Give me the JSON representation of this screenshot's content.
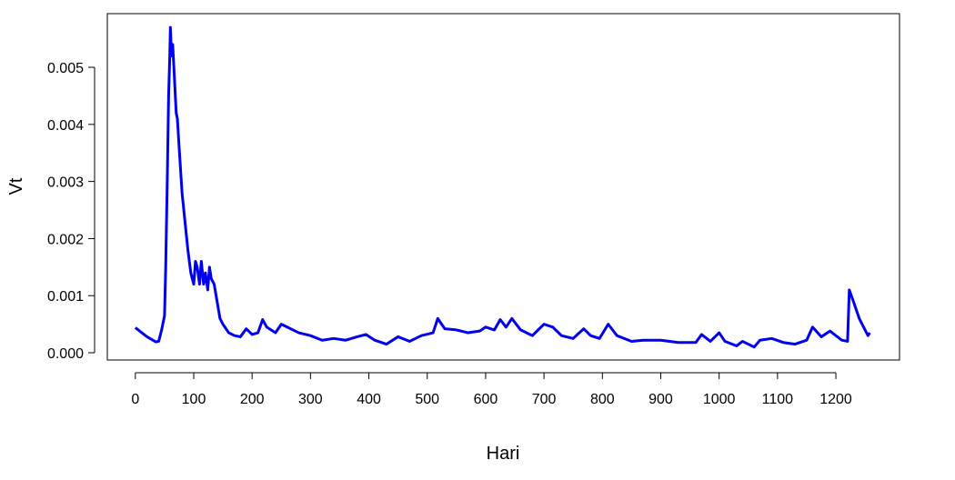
{
  "chart_data": {
    "type": "line",
    "xlabel": "Hari",
    "ylabel": "Vt",
    "x": [
      0,
      10,
      20,
      30,
      35,
      40,
      45,
      50,
      52,
      55,
      57,
      59,
      60,
      62,
      64,
      66,
      70,
      72,
      75,
      80,
      85,
      90,
      95,
      100,
      103,
      106,
      110,
      113,
      117,
      120,
      124,
      127,
      130,
      135,
      140,
      145,
      150,
      160,
      170,
      180,
      190,
      200,
      210,
      218,
      225,
      240,
      250,
      260,
      270,
      280,
      300,
      320,
      340,
      360,
      380,
      395,
      410,
      430,
      450,
      470,
      490,
      510,
      518,
      530,
      550,
      570,
      590,
      600,
      615,
      625,
      635,
      645,
      660,
      680,
      700,
      715,
      730,
      750,
      768,
      780,
      795,
      810,
      825,
      850,
      870,
      900,
      930,
      960,
      970,
      985,
      1000,
      1010,
      1030,
      1040,
      1060,
      1070,
      1090,
      1110,
      1130,
      1150,
      1160,
      1175,
      1190,
      1210,
      1220,
      1223,
      1230,
      1240,
      1250,
      1255,
      1258
    ],
    "series": [
      {
        "name": "Vt",
        "color": "#0000ee",
        "values": [
          0.00044,
          0.00036,
          0.00028,
          0.00022,
          0.00019,
          0.0002,
          0.0004,
          0.00065,
          0.0015,
          0.0032,
          0.0045,
          0.0052,
          0.0057,
          0.0052,
          0.0054,
          0.005,
          0.0042,
          0.0041,
          0.0036,
          0.0028,
          0.0023,
          0.0018,
          0.0014,
          0.0012,
          0.0016,
          0.0015,
          0.0012,
          0.0016,
          0.0012,
          0.0014,
          0.0011,
          0.0015,
          0.0013,
          0.0012,
          0.0009,
          0.0006,
          0.0005,
          0.00035,
          0.0003,
          0.00028,
          0.00042,
          0.00032,
          0.00035,
          0.00058,
          0.00045,
          0.00035,
          0.0005,
          0.00045,
          0.0004,
          0.00035,
          0.0003,
          0.00022,
          0.00025,
          0.00022,
          0.00028,
          0.00032,
          0.00022,
          0.00015,
          0.00028,
          0.0002,
          0.0003,
          0.00035,
          0.0006,
          0.00042,
          0.0004,
          0.00035,
          0.00038,
          0.00045,
          0.0004,
          0.00058,
          0.00045,
          0.0006,
          0.0004,
          0.0003,
          0.0005,
          0.00045,
          0.0003,
          0.00025,
          0.00042,
          0.0003,
          0.00025,
          0.0005,
          0.0003,
          0.0002,
          0.00022,
          0.00022,
          0.00018,
          0.00018,
          0.00032,
          0.0002,
          0.00035,
          0.0002,
          0.00012,
          0.0002,
          0.0001,
          0.00022,
          0.00025,
          0.00018,
          0.00015,
          0.00022,
          0.00045,
          0.00028,
          0.00038,
          0.00022,
          0.0002,
          0.0011,
          0.0009,
          0.0006,
          0.0004,
          0.0003,
          0.00035
        ]
      }
    ],
    "xlim": [
      -48,
      1309
    ],
    "ylim": [
      -0.000127,
      0.00594
    ],
    "xticks": [
      0,
      100,
      200,
      300,
      400,
      500,
      600,
      700,
      800,
      900,
      1000,
      1100,
      1200
    ],
    "yticks": [
      {
        "value": 0,
        "label": "0.000"
      },
      {
        "value": 0.001,
        "label": "0.001"
      },
      {
        "value": 0.002,
        "label": "0.002"
      },
      {
        "value": 0.003,
        "label": "0.003"
      },
      {
        "value": 0.004,
        "label": "0.004"
      },
      {
        "value": 0.005,
        "label": "0.005"
      }
    ]
  }
}
